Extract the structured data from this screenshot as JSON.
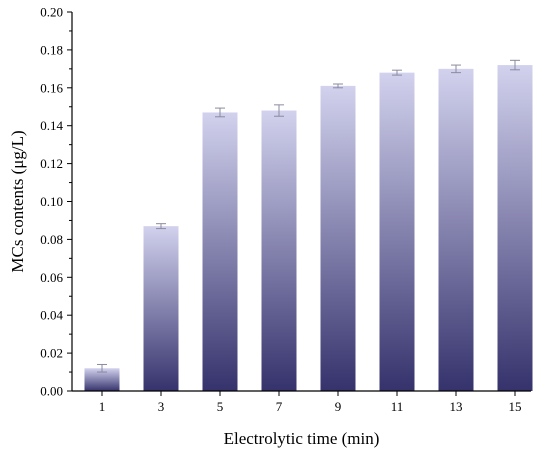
{
  "chart_data": {
    "type": "bar",
    "title": "",
    "xlabel": "Electrolytic time (min)",
    "ylabel": "MCs contents (μg/L)",
    "categories": [
      "1",
      "3",
      "5",
      "7",
      "9",
      "11",
      "13",
      "15"
    ],
    "values": [
      0.012,
      0.087,
      0.147,
      0.148,
      0.161,
      0.168,
      0.17,
      0.172
    ],
    "errors": [
      0.002,
      0.0013,
      0.0023,
      0.003,
      0.001,
      0.0013,
      0.002,
      0.0025
    ],
    "ylim": [
      0,
      0.2
    ],
    "yticks": [
      "0.00",
      "0.02",
      "0.04",
      "0.06",
      "0.08",
      "0.10",
      "0.12",
      "0.14",
      "0.16",
      "0.18",
      "0.20"
    ],
    "grid": false,
    "legend": "none",
    "colors": {
      "bar_top": "#d2d2ee",
      "bar_bottom": "#35326c",
      "error_bar": "#8a8aa0",
      "axis": "#000000"
    }
  }
}
